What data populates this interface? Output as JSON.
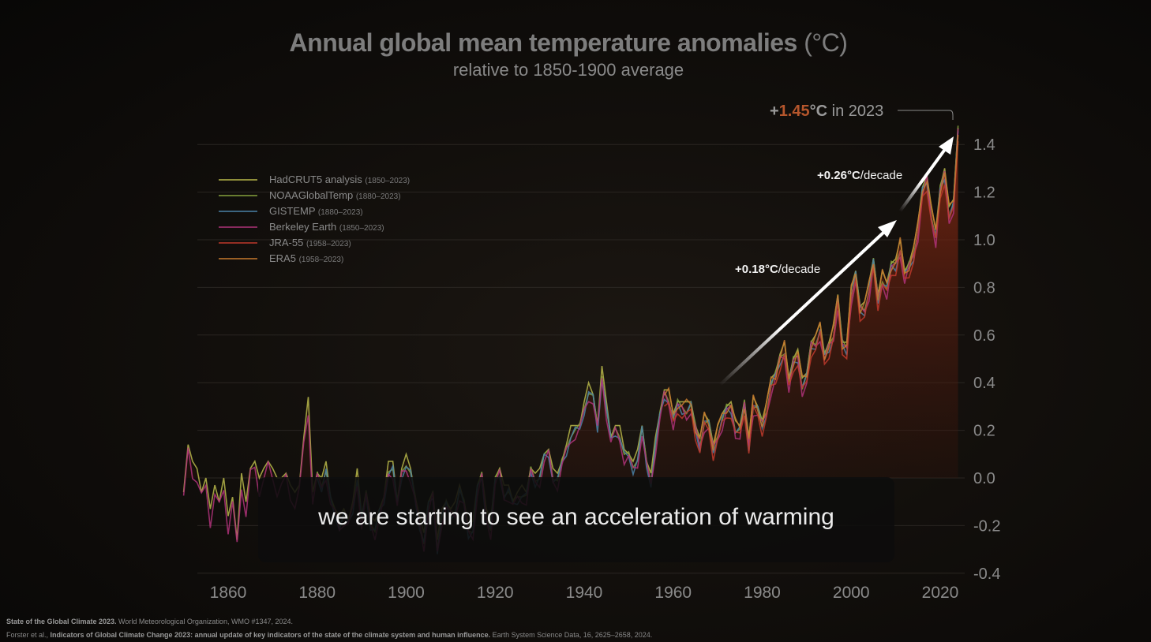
{
  "chart_data": {
    "type": "line",
    "title": "Annual global mean temperature anomalies",
    "title_unit": "(°C)",
    "subtitle": "relative to 1850-1900 average",
    "xlim": [
      1850,
      2023
    ],
    "ylim": [
      -0.4,
      1.5
    ],
    "x_ticks": [
      1860,
      1880,
      1900,
      1920,
      1940,
      1960,
      1980,
      2000,
      2020
    ],
    "y_ticks": [
      1.4,
      1.2,
      1.0,
      0.8,
      0.6,
      0.4,
      0.2,
      0.0,
      -0.2,
      -0.4
    ],
    "y_tick_labels": [
      "1.4",
      "1.2",
      "1.0",
      "0.8",
      "0.6",
      "0.4",
      "0.2",
      "0.0",
      "-0.2",
      "-0.4"
    ],
    "grid": true,
    "legend_placement": "top-left",
    "series": [
      {
        "name": "HadCRUT5 analysis",
        "period": "(1850–2023)",
        "color": "#b9b94a"
      },
      {
        "name": "NOAAGlobalTemp",
        "period": "(1880–2023)",
        "color": "#86a13c"
      },
      {
        "name": "GISTEMP",
        "period": "(1880–2023)",
        "color": "#4a82a8"
      },
      {
        "name": "Berkeley Earth",
        "period": "(1850–2023)",
        "color": "#b0337a"
      },
      {
        "name": "JRA-55",
        "period": "(1958–2023)",
        "color": "#c0392b"
      },
      {
        "name": "ERA5",
        "period": "(1958–2023)",
        "color": "#c77a2e"
      }
    ],
    "base_series": {
      "x_start": 1850,
      "values": [
        -0.08,
        0.12,
        0.05,
        0.02,
        -0.08,
        -0.02,
        -0.15,
        -0.05,
        -0.12,
        -0.02,
        -0.18,
        -0.1,
        -0.28,
        0.0,
        -0.12,
        0.02,
        0.05,
        -0.02,
        0.02,
        0.05,
        0.02,
        -0.02,
        -0.02,
        0.0,
        -0.05,
        -0.08,
        -0.05,
        0.15,
        0.32,
        -0.08,
        0.0,
        -0.02,
        0.05,
        -0.1,
        -0.15,
        -0.18,
        -0.15,
        -0.2,
        -0.12,
        0.02,
        -0.18,
        -0.08,
        -0.18,
        -0.2,
        -0.15,
        -0.1,
        0.05,
        0.05,
        -0.12,
        0.02,
        0.08,
        0.02,
        -0.1,
        -0.18,
        -0.25,
        -0.12,
        -0.08,
        -0.28,
        -0.15,
        -0.12,
        -0.15,
        -0.12,
        -0.05,
        -0.12,
        -0.22,
        -0.2,
        -0.05,
        0.0,
        -0.15,
        -0.2,
        -0.02,
        0.02,
        -0.05,
        -0.05,
        -0.12,
        -0.08,
        -0.05,
        -0.08,
        0.02,
        0.0,
        0.02,
        0.08,
        0.1,
        0.02,
        0.0,
        0.05,
        0.12,
        0.2,
        0.2,
        0.2,
        0.3,
        0.38,
        0.33,
        0.2,
        0.45,
        0.3,
        0.15,
        0.2,
        0.2,
        0.1,
        0.08,
        0.05,
        0.1,
        0.2,
        0.05,
        0.0,
        0.15,
        0.25,
        0.35,
        0.35,
        0.25,
        0.3,
        0.3,
        0.3,
        0.3,
        0.2,
        0.15,
        0.25,
        0.22,
        0.12,
        0.2,
        0.25,
        0.28,
        0.3,
        0.22,
        0.2,
        0.3,
        0.15,
        0.32,
        0.28,
        0.22,
        0.3,
        0.4,
        0.42,
        0.5,
        0.55,
        0.4,
        0.48,
        0.52,
        0.4,
        0.42,
        0.55,
        0.58,
        0.63,
        0.5,
        0.55,
        0.62,
        0.75,
        0.55,
        0.55,
        0.78,
        0.85,
        0.7,
        0.72,
        0.8,
        0.9,
        0.75,
        0.85,
        0.8,
        0.88,
        0.9,
        0.98,
        0.85,
        0.88,
        0.95,
        1.05,
        1.2,
        1.25,
        1.12,
        1.02,
        1.2,
        1.28,
        1.12,
        1.15,
        1.45
      ]
    },
    "annotations": {
      "peak_prefix": "+",
      "peak_value": "1.45",
      "peak_unit": "°C",
      "peak_suffix": " in 2023",
      "trend1_value": "+0.18°C",
      "trend1_unit": "/decade",
      "trend2_value": "+0.26°C",
      "trend2_unit": "/decade"
    }
  },
  "caption": "we are starting to see an acceleration of warming",
  "sources": {
    "line1_bold": "State of the Global Climate 2023.",
    "line1_rest": " World Meteorological Organization, WMO #1347, 2024.",
    "line2_pre": "Forster et al., ",
    "line2_bold": "Indicators of Global Climate Change 2023: annual update of key indicators of the state of the climate system and human influence.",
    "line2_rest": " Earth System Science Data, 16, 2625–2658, 2024."
  }
}
